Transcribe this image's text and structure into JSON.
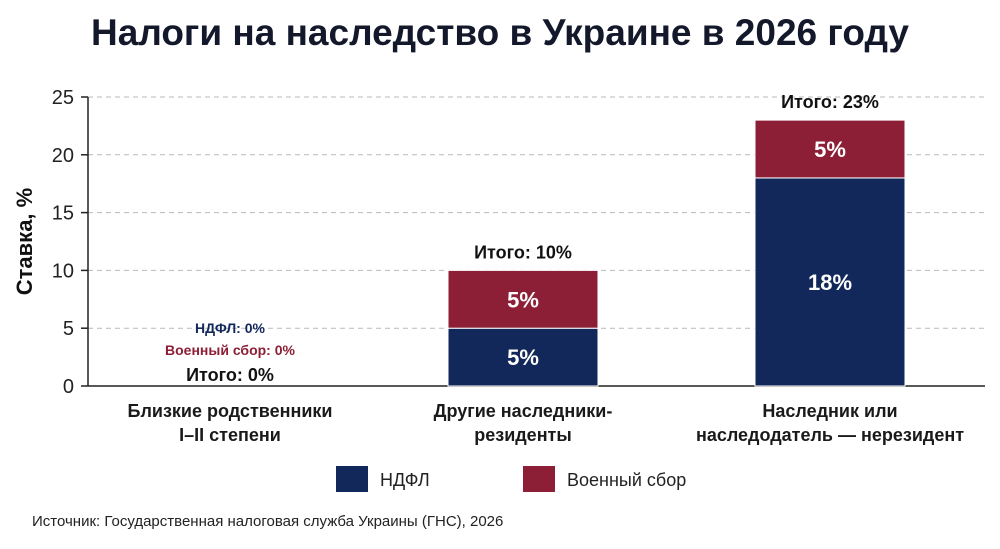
{
  "title": "Налоги на наследство в Украине в 2026 году",
  "source": "Источник: Государственная налоговая служба Украины (ГНС), 2026",
  "chart_data": {
    "type": "bar",
    "stacked": true,
    "title": "Налоги на наследство в Украине в 2026 году",
    "xlabel": "",
    "ylabel": "Ставка, %",
    "ylim": [
      0,
      25
    ],
    "yticks": [
      0,
      5,
      10,
      15,
      20,
      25
    ],
    "grid": true,
    "legend_position": "bottom",
    "categories": [
      [
        "Близкие родственники",
        "I–II степени"
      ],
      [
        "Другие наследники-",
        "резиденты"
      ],
      [
        "Наследник или",
        "наследодатель — нерезидент"
      ]
    ],
    "series": [
      {
        "name": "НДФЛ",
        "color": "#13285a",
        "values": [
          0,
          5,
          18
        ],
        "value_labels": [
          "НДФЛ: 0%",
          "5%",
          "18%"
        ]
      },
      {
        "name": "Военный сбор",
        "color": "#8c1f36",
        "values": [
          0,
          5,
          5
        ],
        "value_labels": [
          "Военный сбор: 0%",
          "5%",
          "5%"
        ]
      }
    ],
    "totals": [
      0,
      10,
      23
    ],
    "total_labels": [
      "Итого: 0%",
      "Итого: 10%",
      "Итого: 23%"
    ]
  }
}
